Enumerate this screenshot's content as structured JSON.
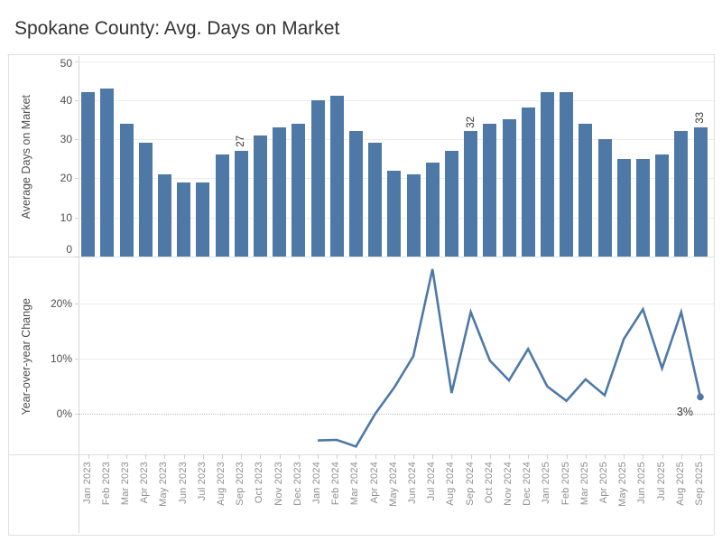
{
  "title": "Spokane County: Avg. Days on Market",
  "colors": {
    "series_blue": "#4e79a7",
    "title_text": "#333333",
    "axis_title_text": "#4e4e4e",
    "tick_label_text": "#4e4e4e",
    "month_label_text": "#8e8e8e",
    "gridline": "#ececec",
    "frame_line": "#e0e0e0"
  },
  "months": [
    "Jan 2023",
    "Feb 2023",
    "Mar 2023",
    "Apr 2023",
    "May 2023",
    "Jun 2023",
    "Jul 2023",
    "Aug 2023",
    "Sep 2023",
    "Oct 2023",
    "Nov 2023",
    "Dec 2023",
    "Jan 2024",
    "Feb 2024",
    "Mar 2024",
    "Apr 2024",
    "May 2024",
    "Jun 2024",
    "Jul 2024",
    "Aug 2024",
    "Sep 2024",
    "Oct 2024",
    "Nov 2024",
    "Dec 2024",
    "Jan 2025",
    "Feb 2025",
    "Mar 2025",
    "Apr 2025",
    "May 2025",
    "Jun 2025",
    "Jul 2025",
    "Aug 2025",
    "Sep 2025"
  ],
  "chart_data": [
    {
      "type": "bar",
      "ylabel": "Average Days on Market",
      "categories": [
        "Jan 2023",
        "Feb 2023",
        "Mar 2023",
        "Apr 2023",
        "May 2023",
        "Jun 2023",
        "Jul 2023",
        "Aug 2023",
        "Sep 2023",
        "Oct 2023",
        "Nov 2023",
        "Dec 2023",
        "Jan 2024",
        "Feb 2024",
        "Mar 2024",
        "Apr 2024",
        "May 2024",
        "Jun 2024",
        "Jul 2024",
        "Aug 2024",
        "Sep 2024",
        "Oct 2024",
        "Nov 2024",
        "Dec 2024",
        "Jan 2025",
        "Feb 2025",
        "Mar 2025",
        "Apr 2025",
        "May 2025",
        "Jun 2025",
        "Jul 2025",
        "Aug 2025",
        "Sep 2025"
      ],
      "values": [
        42,
        43,
        34,
        29,
        21,
        19,
        19,
        26,
        27,
        31,
        33,
        34,
        40,
        41,
        32,
        29,
        22,
        21,
        24,
        27,
        32,
        34,
        35,
        38,
        42,
        42,
        34,
        30,
        25,
        25,
        26,
        32,
        33
      ],
      "ylim": [
        0,
        50
      ],
      "yticks": [
        0,
        10,
        20,
        30,
        40,
        50
      ],
      "grid": true,
      "bar_value_labels": [
        {
          "category": "Sep 2023",
          "text": "27"
        },
        {
          "category": "Sep 2024",
          "text": "32"
        },
        {
          "category": "Sep 2025",
          "text": "33"
        }
      ]
    },
    {
      "type": "line",
      "ylabel": "Year-over-year Change",
      "x": [
        "Jan 2024",
        "Feb 2024",
        "Mar 2024",
        "Apr 2024",
        "May 2024",
        "Jun 2024",
        "Jul 2024",
        "Aug 2024",
        "Sep 2024",
        "Oct 2024",
        "Nov 2024",
        "Dec 2024",
        "Jan 2025",
        "Feb 2025",
        "Mar 2025",
        "Apr 2025",
        "May 2025",
        "Jun 2025",
        "Jul 2025",
        "Aug 2025",
        "Sep 2025"
      ],
      "values_pct": [
        -4.8,
        -4.7,
        -5.9,
        0,
        4.8,
        10.5,
        26.3,
        3.8,
        18.5,
        9.7,
        6.1,
        11.8,
        5,
        2.4,
        6.3,
        3.4,
        13.6,
        19,
        8.3,
        18.5,
        3.1
      ],
      "ylim_pct": [
        -7.2,
        28.2
      ],
      "yticks_pct": [
        0,
        10,
        20
      ],
      "ytick_labels": [
        "0%",
        "10%",
        "20%"
      ],
      "grid": true,
      "zero_line_style": "dotted",
      "end_point_label": "3%"
    }
  ]
}
